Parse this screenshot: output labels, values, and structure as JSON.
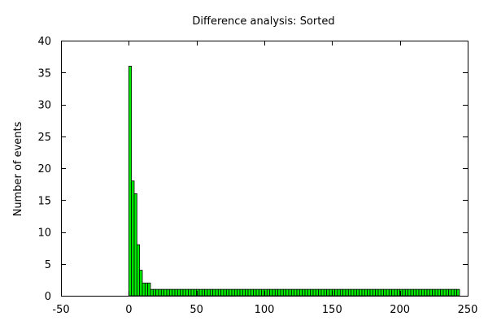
{
  "chart_data": {
    "type": "bar",
    "title": "Difference analysis: Sorted",
    "xlabel": "",
    "ylabel": "Number of events",
    "xlim": [
      -50,
      250
    ],
    "ylim": [
      0,
      40
    ],
    "x_ticks": [
      -50,
      0,
      50,
      100,
      150,
      200,
      250
    ],
    "y_ticks": [
      0,
      5,
      10,
      15,
      20,
      25,
      30,
      35,
      40
    ],
    "bar_color": "#00ee00",
    "bar_edge_color": "#000000",
    "bar_width": 2,
    "x": [
      0,
      2,
      4,
      6,
      8,
      10,
      12,
      14,
      16,
      18,
      20,
      22,
      24,
      26,
      28,
      30,
      32,
      34,
      36,
      38,
      40,
      42,
      44,
      46,
      48,
      50,
      52,
      54,
      56,
      58,
      60,
      62,
      64,
      66,
      68,
      70,
      72,
      74,
      76,
      78,
      80,
      82,
      84,
      86,
      88,
      90,
      92,
      94,
      96,
      98,
      100,
      102,
      104,
      106,
      108,
      110,
      112,
      114,
      116,
      118,
      120,
      122,
      124,
      126,
      128,
      130,
      132,
      134,
      136,
      138,
      140,
      142,
      144,
      146,
      148,
      150,
      152,
      154,
      156,
      158,
      160,
      162,
      164,
      166,
      168,
      170,
      172,
      174,
      176,
      178,
      180,
      182,
      184,
      186,
      188,
      190,
      192,
      194,
      196,
      198,
      200,
      202,
      204,
      206,
      208,
      210,
      212,
      214,
      216,
      218,
      220,
      222,
      224,
      226,
      228,
      230,
      232,
      234,
      236,
      238,
      240,
      242
    ],
    "values": [
      36,
      18,
      16,
      8,
      4,
      2,
      2,
      2,
      1,
      1,
      1,
      1,
      1,
      1,
      1,
      1,
      1,
      1,
      1,
      1,
      1,
      1,
      1,
      1,
      1,
      1,
      1,
      1,
      1,
      1,
      1,
      1,
      1,
      1,
      1,
      1,
      1,
      1,
      1,
      1,
      1,
      1,
      1,
      1,
      1,
      1,
      1,
      1,
      1,
      1,
      1,
      1,
      1,
      1,
      1,
      1,
      1,
      1,
      1,
      1,
      1,
      1,
      1,
      1,
      1,
      1,
      1,
      1,
      1,
      1,
      1,
      1,
      1,
      1,
      1,
      1,
      1,
      1,
      1,
      1,
      1,
      1,
      1,
      1,
      1,
      1,
      1,
      1,
      1,
      1,
      1,
      1,
      1,
      1,
      1,
      1,
      1,
      1,
      1,
      1,
      1,
      1,
      1,
      1,
      1,
      1,
      1,
      1,
      1,
      1,
      1,
      1,
      1,
      1,
      1,
      1,
      1,
      1,
      1,
      1,
      1,
      1
    ],
    "grid": false,
    "legend": "none"
  }
}
